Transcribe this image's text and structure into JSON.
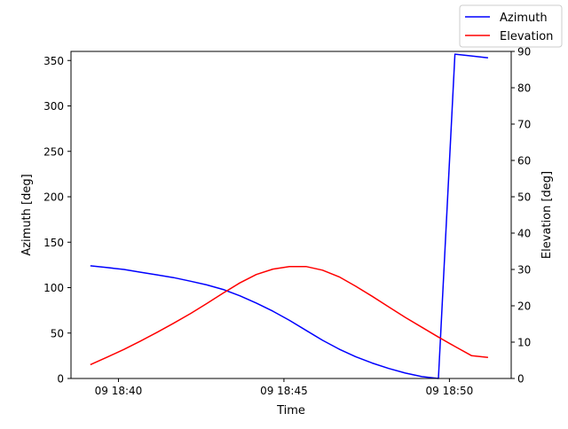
{
  "chart_data": {
    "type": "line",
    "xlabel": "Time",
    "ylabel_left": "Azimuth [deg]",
    "ylabel_right": "Elevation [deg]",
    "x_ticks": [
      "09 18:40",
      "09 18:45",
      "09 18:50"
    ],
    "y_left_ticks": [
      0,
      50,
      100,
      150,
      200,
      250,
      300,
      350
    ],
    "y_right_ticks": [
      0,
      10,
      20,
      30,
      40,
      50,
      60,
      70,
      80,
      90
    ],
    "xlim": [
      "18:38:34",
      "18:51:52"
    ],
    "ylim_left": [
      0,
      360
    ],
    "ylim_right": [
      0,
      90
    ],
    "legend_position": "top-right",
    "grid": false,
    "series": [
      {
        "name": "Azimuth",
        "axis": "left",
        "color": "#0000ff",
        "x": [
          "18:39:09",
          "18:39:40",
          "18:40:10",
          "18:40:40",
          "18:41:10",
          "18:41:40",
          "18:42:11",
          "18:42:40",
          "18:43:10",
          "18:43:40",
          "18:44:10",
          "18:44:40",
          "18:45:10",
          "18:45:40",
          "18:46:10",
          "18:46:41",
          "18:47:10",
          "18:47:40",
          "18:48:10",
          "18:48:40",
          "18:49:10",
          "18:49:40",
          "18:50:10",
          "18:50:40",
          "18:51:10"
        ],
        "y": [
          124,
          122,
          120,
          117,
          114,
          111,
          107,
          103,
          98,
          91,
          83,
          74,
          64,
          53,
          42,
          32,
          24,
          17,
          11,
          6,
          2,
          0,
          357,
          355,
          353
        ]
      },
      {
        "name": "Elevation",
        "axis": "right",
        "color": "#ff0000",
        "x": [
          "18:39:09",
          "18:39:40",
          "18:40:10",
          "18:40:40",
          "18:41:10",
          "18:41:40",
          "18:42:11",
          "18:42:40",
          "18:43:10",
          "18:43:40",
          "18:44:10",
          "18:44:40",
          "18:45:10",
          "18:45:40",
          "18:46:10",
          "18:46:41",
          "18:47:10",
          "18:47:40",
          "18:48:10",
          "18:48:40",
          "18:49:10",
          "18:49:40",
          "18:50:10",
          "18:50:40",
          "18:51:10"
        ],
        "y": [
          3.8,
          5.9,
          8.0,
          10.3,
          12.7,
          15.2,
          17.9,
          20.6,
          23.5,
          26.3,
          28.6,
          30.1,
          30.8,
          30.8,
          29.8,
          27.9,
          25.4,
          22.6,
          19.7,
          16.8,
          14.1,
          11.4,
          8.8,
          6.3,
          5.8
        ]
      }
    ]
  }
}
